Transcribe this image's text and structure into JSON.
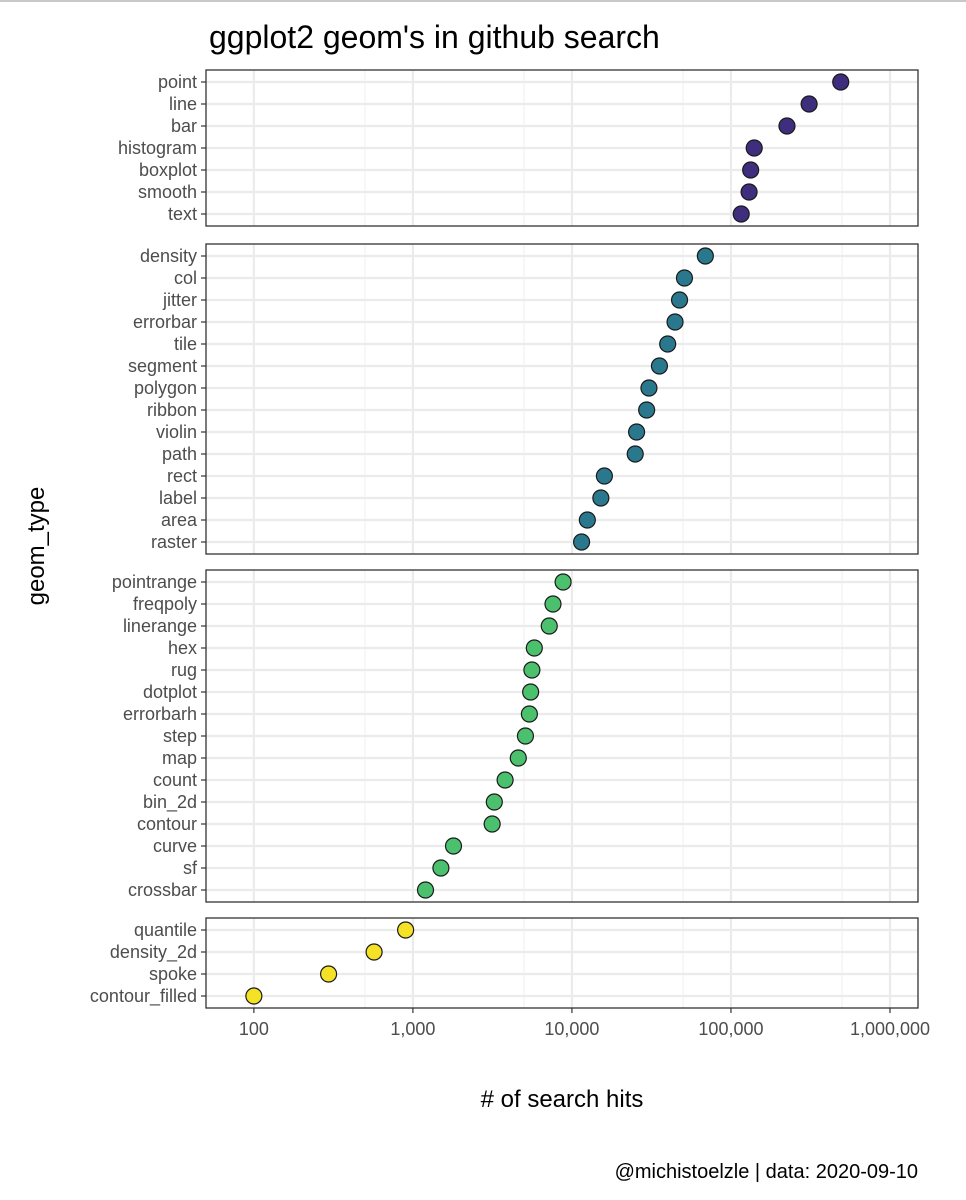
{
  "chart_data": {
    "type": "scatter",
    "title": "ggplot2 geom's in github search",
    "xlabel": "# of search hits",
    "ylabel": "geom_type",
    "caption": "@michistoelzle | data: 2020-09-10",
    "x_scale": "log10",
    "xlim": [
      50,
      1500000
    ],
    "x_ticks": [
      100,
      1000,
      10000,
      100000,
      1000000
    ],
    "x_tick_labels": [
      "100",
      "1,000",
      "10,000",
      "100,000",
      "1,000,000"
    ],
    "grid": true,
    "panels": [
      {
        "color": "#3F2E7E",
        "points": [
          {
            "geom": "point",
            "value": 490000
          },
          {
            "geom": "line",
            "value": 310000
          },
          {
            "geom": "bar",
            "value": 225000
          },
          {
            "geom": "histogram",
            "value": 140000
          },
          {
            "geom": "boxplot",
            "value": 133000
          },
          {
            "geom": "smooth",
            "value": 130000
          },
          {
            "geom": "text",
            "value": 116000
          }
        ]
      },
      {
        "color": "#2A788E",
        "points": [
          {
            "geom": "density",
            "value": 69000
          },
          {
            "geom": "col",
            "value": 51000
          },
          {
            "geom": "jitter",
            "value": 47500
          },
          {
            "geom": "errorbar",
            "value": 44500
          },
          {
            "geom": "tile",
            "value": 40000
          },
          {
            "geom": "segment",
            "value": 35500
          },
          {
            "geom": "polygon",
            "value": 30500
          },
          {
            "geom": "ribbon",
            "value": 29500
          },
          {
            "geom": "violin",
            "value": 25500
          },
          {
            "geom": "path",
            "value": 25000
          },
          {
            "geom": "rect",
            "value": 16000
          },
          {
            "geom": "label",
            "value": 15200
          },
          {
            "geom": "area",
            "value": 12500
          },
          {
            "geom": "raster",
            "value": 11500
          }
        ]
      },
      {
        "color": "#4BC16E",
        "points": [
          {
            "geom": "pointrange",
            "value": 8800
          },
          {
            "geom": "freqpoly",
            "value": 7600
          },
          {
            "geom": "linerange",
            "value": 7200
          },
          {
            "geom": "hex",
            "value": 5800
          },
          {
            "geom": "rug",
            "value": 5600
          },
          {
            "geom": "dotplot",
            "value": 5500
          },
          {
            "geom": "errorbarh",
            "value": 5400
          },
          {
            "geom": "step",
            "value": 5100
          },
          {
            "geom": "map",
            "value": 4600
          },
          {
            "geom": "count",
            "value": 3800
          },
          {
            "geom": "bin_2d",
            "value": 3250
          },
          {
            "geom": "contour",
            "value": 3150
          },
          {
            "geom": "curve",
            "value": 1800
          },
          {
            "geom": "sf",
            "value": 1500
          },
          {
            "geom": "crossbar",
            "value": 1200
          }
        ]
      },
      {
        "color": "#F5E227",
        "points": [
          {
            "geom": "quantile",
            "value": 900
          },
          {
            "geom": "density_2d",
            "value": 570
          },
          {
            "geom": "spoke",
            "value": 295
          },
          {
            "geom": "contour_filled",
            "value": 100
          }
        ]
      }
    ]
  }
}
